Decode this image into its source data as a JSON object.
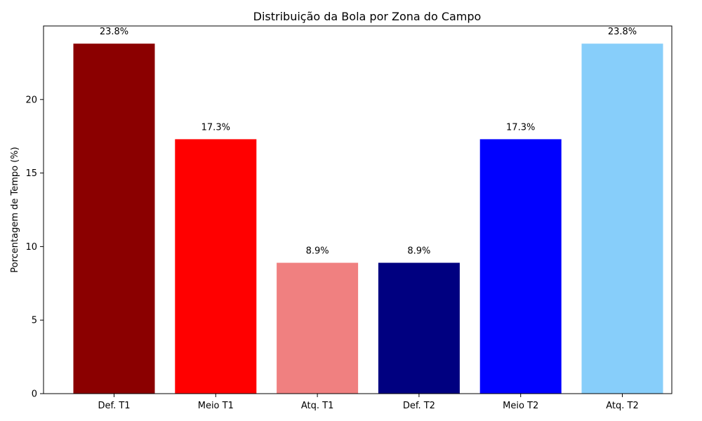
{
  "chart_data": {
    "type": "bar",
    "title": "Distribuição da Bola por Zona do Campo",
    "xlabel": "",
    "ylabel": "Porcentagem de Tempo (%)",
    "categories": [
      "Def. T1",
      "Meio T1",
      "Atq. T1",
      "Def. T2",
      "Meio T2",
      "Atq. T2"
    ],
    "values": [
      23.8,
      17.3,
      8.9,
      8.9,
      17.3,
      23.8
    ],
    "data_labels": [
      "23.8%",
      "17.3%",
      "8.9%",
      "8.9%",
      "17.3%",
      "23.8%"
    ],
    "colors": [
      "#8b0000",
      "#ff0000",
      "#f08080",
      "#000080",
      "#0000ff",
      "#87cefa"
    ],
    "ylim": [
      0,
      25
    ],
    "yticks": [
      0,
      5,
      10,
      15,
      20
    ],
    "ytick_labels": [
      "0",
      "5",
      "10",
      "15",
      "20"
    ],
    "grid": false,
    "legend": "none"
  }
}
